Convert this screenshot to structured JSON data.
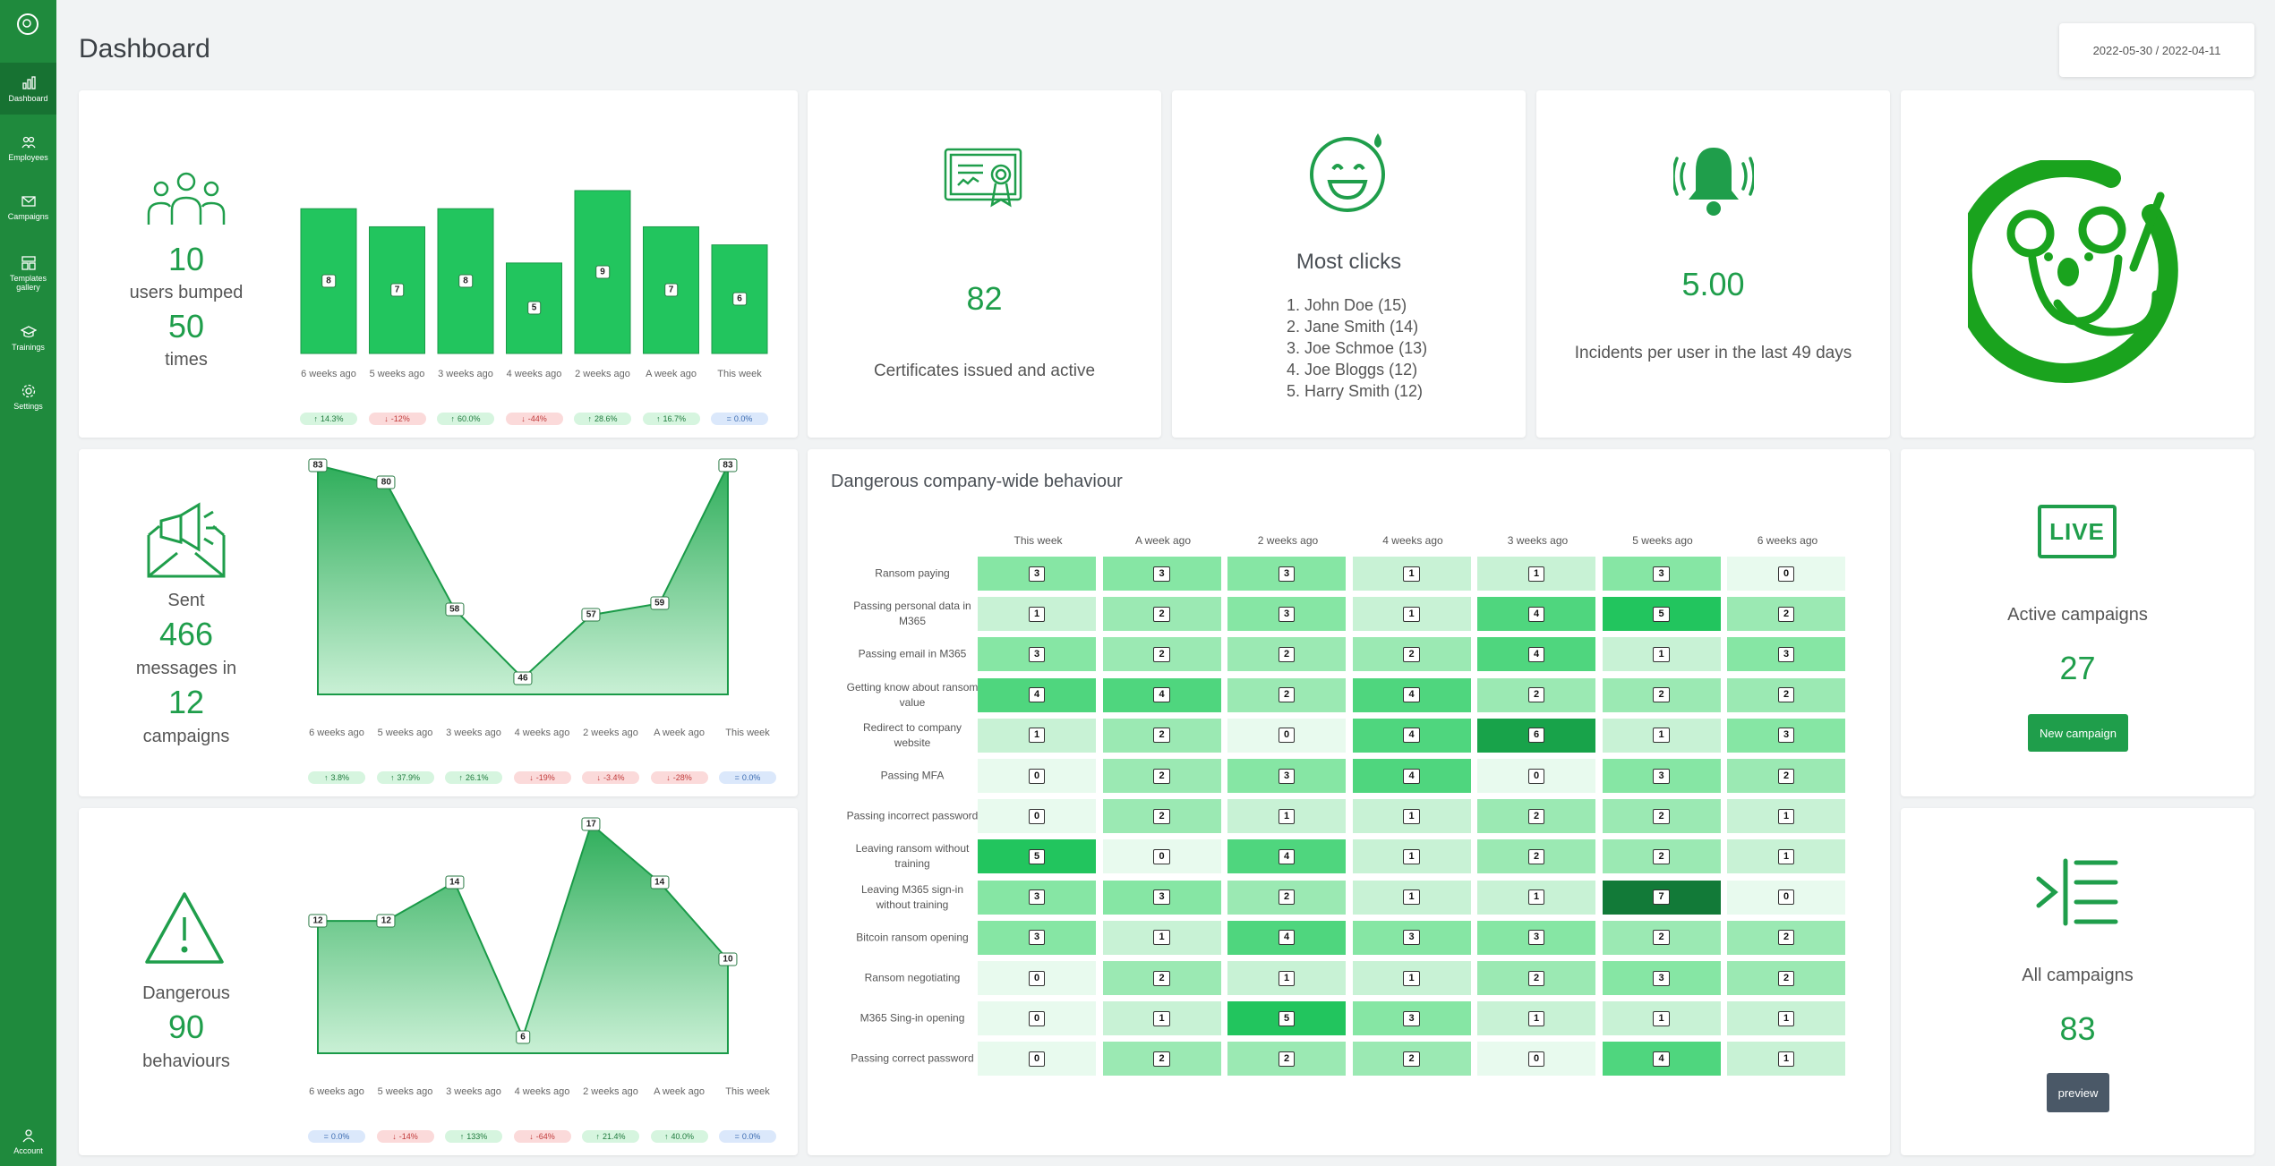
{
  "sidebar": {
    "items": [
      {
        "label": "Dashboard",
        "icon": "bar-chart-icon"
      },
      {
        "label": "Employees",
        "icon": "users-icon"
      },
      {
        "label": "Campaigns",
        "icon": "mail-icon"
      },
      {
        "label": "Templates gallery",
        "icon": "templates-icon"
      },
      {
        "label": "Trainings",
        "icon": "graduation-cap-icon"
      },
      {
        "label": "Settings",
        "icon": "gear-icon"
      }
    ],
    "account_label": "Account"
  },
  "header": {
    "title": "Dashboard",
    "date_range": "2022-05-30 / 2022-04-11"
  },
  "users_card": {
    "users_count": "10",
    "users_label": "users bumped",
    "times_count": "50",
    "times_label": "times"
  },
  "sent_card": {
    "sent_label": "Sent",
    "messages_count": "466",
    "messages_label": "messages in",
    "campaigns_count": "12",
    "campaigns_label": "campaigns"
  },
  "dangerous_card": {
    "label": "Dangerous",
    "count": "90",
    "behaviours_label": "behaviours"
  },
  "certificates_card": {
    "count": "82",
    "label": "Certificates issued and active"
  },
  "clicks_card": {
    "title": "Most clicks",
    "list": [
      "1. John Doe (15)",
      "2. Jane Smith (14)",
      "3. Joe Schmoe (13)",
      "4. Joe Bloggs (12)",
      "5. Harry Smith (12)"
    ]
  },
  "incidents_card": {
    "value": "5.00",
    "label": "Incidents per user in the last 49 days"
  },
  "active_campaigns_card": {
    "live_text": "LIVE",
    "label": "Active campaigns",
    "count": "27",
    "button_label": "New campaign"
  },
  "all_campaigns_card": {
    "label": "All campaigns",
    "count": "83",
    "button_label": "preview"
  },
  "chart_data": [
    {
      "type": "bar",
      "categories": [
        "6 weeks ago",
        "5 weeks ago",
        "3 weeks ago",
        "4 weeks ago",
        "2 weeks ago",
        "A week ago",
        "This week"
      ],
      "values": [
        8,
        7,
        8,
        5,
        9,
        7,
        6
      ],
      "ylim": [
        0,
        9
      ],
      "changes": [
        {
          "text": "14.3%",
          "dir": "up"
        },
        {
          "text": "-12%",
          "dir": "down"
        },
        {
          "text": "60.0%",
          "dir": "up"
        },
        {
          "text": "-44%",
          "dir": "down"
        },
        {
          "text": "28.6%",
          "dir": "up"
        },
        {
          "text": "16.7%",
          "dir": "up"
        },
        {
          "text": "0.0%",
          "dir": "eq"
        }
      ]
    },
    {
      "type": "area",
      "categories": [
        "6 weeks ago",
        "5 weeks ago",
        "3 weeks ago",
        "4 weeks ago",
        "2 weeks ago",
        "A week ago",
        "This week"
      ],
      "values": [
        83,
        80,
        58,
        46,
        57,
        59,
        83
      ],
      "ylim": [
        46,
        83
      ],
      "changes": [
        {
          "text": "3.8%",
          "dir": "up"
        },
        {
          "text": "37.9%",
          "dir": "up"
        },
        {
          "text": "26.1%",
          "dir": "up"
        },
        {
          "text": "-19%",
          "dir": "down"
        },
        {
          "text": "-3.4%",
          "dir": "down"
        },
        {
          "text": "-28%",
          "dir": "down"
        },
        {
          "text": "0.0%",
          "dir": "eq"
        }
      ]
    },
    {
      "type": "area",
      "categories": [
        "6 weeks ago",
        "5 weeks ago",
        "3 weeks ago",
        "4 weeks ago",
        "2 weeks ago",
        "A week ago",
        "This week"
      ],
      "values": [
        12,
        12,
        14,
        6,
        17,
        14,
        10
      ],
      "ylim": [
        6,
        17
      ],
      "changes": [
        {
          "text": "0.0%",
          "dir": "eq"
        },
        {
          "text": "-14%",
          "dir": "down"
        },
        {
          "text": "133%",
          "dir": "up"
        },
        {
          "text": "-64%",
          "dir": "down"
        },
        {
          "text": "21.4%",
          "dir": "up"
        },
        {
          "text": "40.0%",
          "dir": "up"
        },
        {
          "text": "0.0%",
          "dir": "eq"
        }
      ]
    },
    {
      "type": "heatmap",
      "title": "Dangerous company-wide behaviour",
      "columns": [
        "This week",
        "A week ago",
        "2 weeks ago",
        "4 weeks ago",
        "3 weeks ago",
        "5 weeks ago",
        "6 weeks ago"
      ],
      "rows": [
        "Ransom paying",
        "Passing personal data in M365",
        "Passing email in M365",
        "Getting know about ransom value",
        "Redirect to company website",
        "Passing MFA",
        "Passing incorrect password",
        "Leaving ransom without training",
        "Leaving M365 sign-in without training",
        "Bitcoin ransom opening",
        "Ransom negotiating",
        "M365 Sing-in opening",
        "Passing correct password"
      ],
      "values": [
        [
          3,
          3,
          3,
          1,
          1,
          3,
          0
        ],
        [
          1,
          2,
          3,
          1,
          4,
          5,
          2
        ],
        [
          3,
          2,
          2,
          2,
          4,
          1,
          3
        ],
        [
          4,
          4,
          2,
          4,
          2,
          2,
          2
        ],
        [
          1,
          2,
          0,
          4,
          6,
          1,
          3
        ],
        [
          0,
          2,
          3,
          4,
          0,
          3,
          2
        ],
        [
          0,
          2,
          1,
          1,
          2,
          2,
          1
        ],
        [
          5,
          0,
          4,
          1,
          2,
          2,
          1
        ],
        [
          3,
          3,
          2,
          1,
          1,
          7,
          0
        ],
        [
          3,
          1,
          4,
          3,
          3,
          2,
          2
        ],
        [
          0,
          2,
          1,
          1,
          2,
          3,
          2
        ],
        [
          0,
          1,
          5,
          3,
          1,
          1,
          1
        ],
        [
          0,
          2,
          2,
          2,
          0,
          4,
          1
        ]
      ]
    }
  ]
}
